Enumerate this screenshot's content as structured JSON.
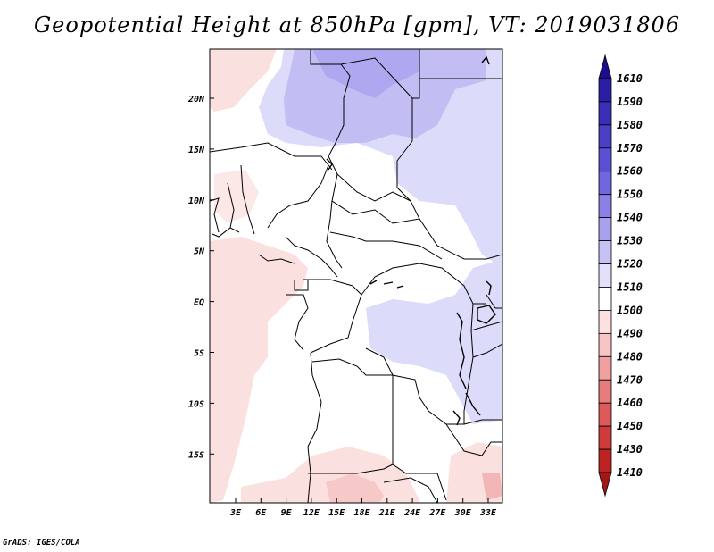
{
  "title": "Geopotential Height at 850hPa [gpm], VT: 2019031806",
  "credit": "GrADS: IGES/COLA",
  "lat_labels": [
    "20N",
    "15N",
    "10N",
    "5N",
    "EQ",
    "5S",
    "10S",
    "15S"
  ],
  "lon_labels": [
    "3E",
    "6E",
    "9E",
    "12E",
    "15E",
    "18E",
    "21E",
    "24E",
    "27E",
    "30E",
    "33E"
  ],
  "colorbar": {
    "labels": [
      "1610",
      "1590",
      "1580",
      "1570",
      "1560",
      "1550",
      "1540",
      "1530",
      "1520",
      "1510",
      "1500",
      "1490",
      "1480",
      "1470",
      "1460",
      "1450",
      "1430",
      "1410"
    ],
    "colors": [
      "#1a0e8c",
      "#2b1ea4",
      "#3a2fb8",
      "#4a3fc6",
      "#5a50d4",
      "#7066de",
      "#8a80e6",
      "#a8a2ee",
      "#c6c2f6",
      "#e2e0fb",
      "#ffffff",
      "#fde0e0",
      "#f8c4c4",
      "#f0a0a0",
      "#e67c7c",
      "#dc5a5a",
      "#cf3a3a",
      "#be2323",
      "#a01818"
    ]
  }
}
